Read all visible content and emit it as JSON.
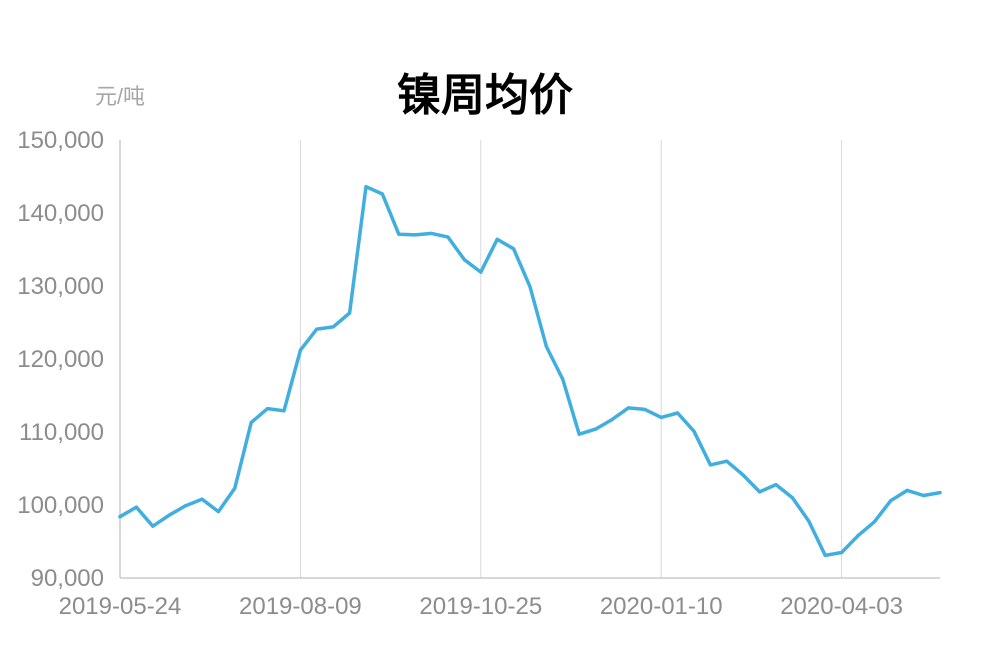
{
  "colors": {
    "line": "#41aee0",
    "grid": "#d9d9d9",
    "axis": "#bfbfbf",
    "text": "#8c8c8c",
    "unit": "#a6a6a6"
  },
  "chart_data": {
    "type": "line",
    "title": "镍周均价",
    "unit_label": "元/吨",
    "ylim": [
      90000,
      150000
    ],
    "y_ticks": [
      90000,
      100000,
      110000,
      120000,
      130000,
      140000,
      150000
    ],
    "y_tick_labels": [
      "90,000",
      "100,000",
      "110,000",
      "120,000",
      "130,000",
      "140,000",
      "150,000"
    ],
    "x_tick_labels": [
      "2019-05-24",
      "2019-08-09",
      "2019-10-25",
      "2020-01-10",
      "2020-04-03"
    ],
    "x_tick_index": [
      0,
      11,
      22,
      33,
      44
    ],
    "x_count": 51,
    "grid": "vertical",
    "series": [
      {
        "values": [
          98400,
          99700,
          97100,
          98600,
          99900,
          100800,
          99100,
          102300,
          111300,
          113200,
          112900,
          121200,
          124100,
          124400,
          126300,
          143600,
          142600,
          137100,
          137000,
          137200,
          136700,
          133600,
          131900,
          136400,
          135100,
          129900,
          121700,
          117200,
          109700,
          110400,
          111700,
          113300,
          113100,
          112000,
          112600,
          110100,
          105500,
          106000,
          104100,
          101800,
          102800,
          101000,
          97800,
          93100,
          93500,
          95800,
          97700,
          100600,
          102000,
          101300,
          101700
        ]
      }
    ]
  }
}
